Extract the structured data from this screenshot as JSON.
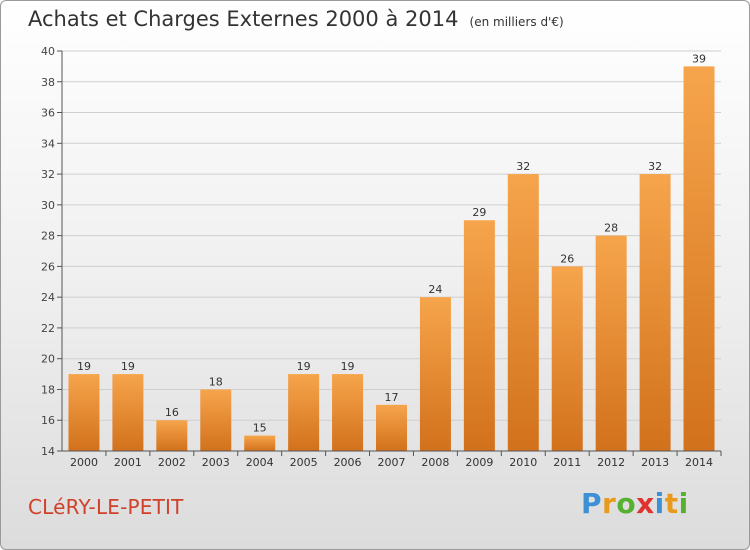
{
  "header": {
    "title": "Achats et Charges Externes 2000 à 2014",
    "unit": "(en milliers d'€)"
  },
  "footer": {
    "city": "CLéRY-LE-PETIT",
    "logo": [
      "P",
      "r",
      "o",
      "x",
      "i",
      "t",
      "i"
    ]
  },
  "colors": {
    "bar_light": "#f6a54c",
    "bar_dark": "#d2711c",
    "axis": "#555555",
    "grid": "#cfcfcf"
  },
  "chart_data": {
    "type": "bar",
    "title": "Achats et Charges Externes 2000 à 2014",
    "subtitle": "(en milliers d'€)",
    "xlabel": "",
    "ylabel": "",
    "categories": [
      "2000",
      "2001",
      "2002",
      "2003",
      "2004",
      "2005",
      "2006",
      "2007",
      "2008",
      "2009",
      "2010",
      "2011",
      "2012",
      "2013",
      "2014"
    ],
    "values": [
      19,
      19,
      16,
      18,
      15,
      19,
      19,
      17,
      24,
      29,
      32,
      26,
      28,
      32,
      39
    ],
    "ylim": [
      14,
      40
    ],
    "yticks": [
      14,
      16,
      18,
      20,
      22,
      24,
      26,
      28,
      30,
      32,
      34,
      36,
      38,
      40
    ],
    "grid": true,
    "data_labels": true
  }
}
